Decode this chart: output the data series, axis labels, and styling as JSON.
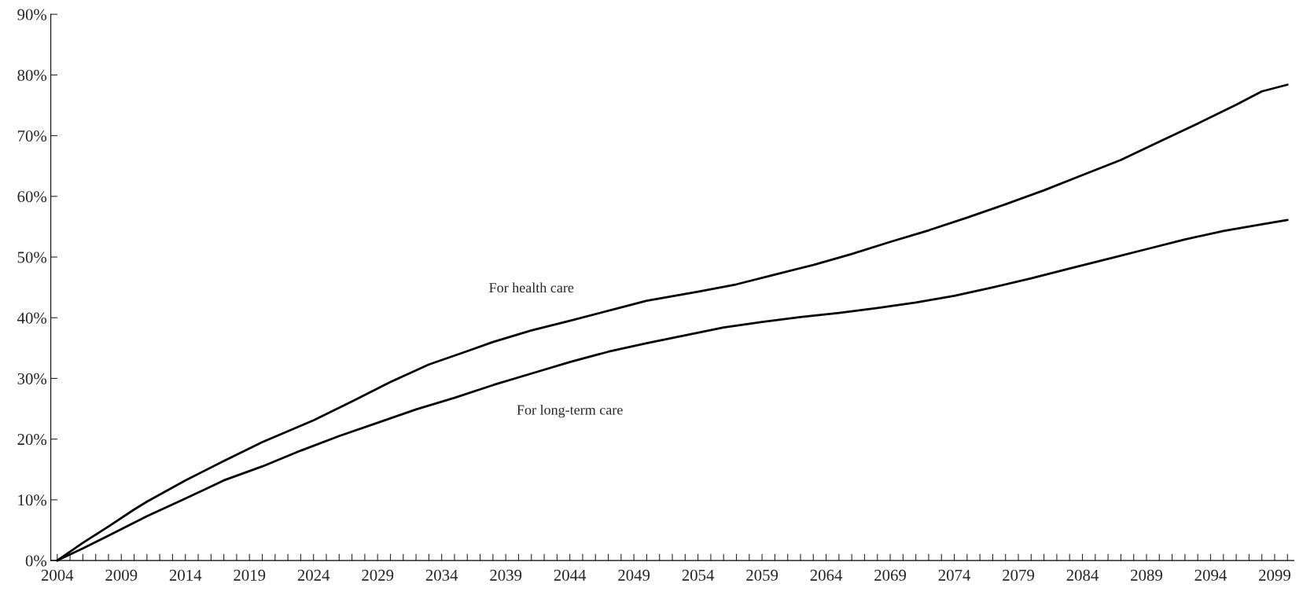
{
  "chart_data": {
    "type": "line",
    "xlim": [
      2003.5,
      2100.5
    ],
    "ylim": [
      0,
      90
    ],
    "yticks": [
      {
        "value": 0,
        "label": "0%"
      },
      {
        "value": 10,
        "label": "10%"
      },
      {
        "value": 20,
        "label": "20%"
      },
      {
        "value": 30,
        "label": "30%"
      },
      {
        "value": 40,
        "label": "40%"
      },
      {
        "value": 50,
        "label": "50%"
      },
      {
        "value": 60,
        "label": "60%"
      },
      {
        "value": 70,
        "label": "70%"
      },
      {
        "value": 80,
        "label": "80%"
      },
      {
        "value": 90,
        "label": "90%"
      }
    ],
    "xticks": [
      2004,
      2009,
      2014,
      2019,
      2024,
      2029,
      2034,
      2039,
      2044,
      2049,
      2054,
      2059,
      2064,
      2069,
      2074,
      2079,
      2084,
      2089,
      2094,
      2099,
      {
        "value": 2005,
        "label": null
      },
      {
        "value": 2006,
        "label": null
      },
      {
        "value": 2007,
        "label": null
      },
      {
        "value": 2008,
        "label": null
      },
      {
        "value": 2010,
        "label": null
      },
      {
        "value": 2011,
        "label": null
      },
      {
        "value": 2012,
        "label": null
      },
      {
        "value": 2013,
        "label": null
      },
      {
        "value": 2015,
        "label": null
      },
      {
        "value": 2016,
        "label": null
      },
      {
        "value": 2017,
        "label": null
      },
      {
        "value": 2018,
        "label": null
      },
      {
        "value": 2020,
        "label": null
      },
      {
        "value": 2021,
        "label": null
      },
      {
        "value": 2022,
        "label": null
      },
      {
        "value": 2023,
        "label": null
      },
      {
        "value": 2025,
        "label": null
      },
      {
        "value": 2026,
        "label": null
      },
      {
        "value": 2027,
        "label": null
      },
      {
        "value": 2028,
        "label": null
      },
      {
        "value": 2030,
        "label": null
      },
      {
        "value": 2031,
        "label": null
      },
      {
        "value": 2032,
        "label": null
      },
      {
        "value": 2033,
        "label": null
      },
      {
        "value": 2035,
        "label": null
      },
      {
        "value": 2036,
        "label": null
      },
      {
        "value": 2037,
        "label": null
      },
      {
        "value": 2038,
        "label": null
      },
      {
        "value": 2040,
        "label": null
      },
      {
        "value": 2041,
        "label": null
      },
      {
        "value": 2042,
        "label": null
      },
      {
        "value": 2043,
        "label": null
      },
      {
        "value": 2045,
        "label": null
      },
      {
        "value": 2046,
        "label": null
      },
      {
        "value": 2047,
        "label": null
      },
      {
        "value": 2048,
        "label": null
      },
      {
        "value": 2050,
        "label": null
      },
      {
        "value": 2051,
        "label": null
      },
      {
        "value": 2052,
        "label": null
      },
      {
        "value": 2053,
        "label": null
      },
      {
        "value": 2055,
        "label": null
      },
      {
        "value": 2056,
        "label": null
      },
      {
        "value": 2057,
        "label": null
      },
      {
        "value": 2058,
        "label": null
      },
      {
        "value": 2060,
        "label": null
      },
      {
        "value": 2061,
        "label": null
      },
      {
        "value": 2062,
        "label": null
      },
      {
        "value": 2063,
        "label": null
      },
      {
        "value": 2065,
        "label": null
      },
      {
        "value": 2066,
        "label": null
      },
      {
        "value": 2067,
        "label": null
      },
      {
        "value": 2068,
        "label": null
      },
      {
        "value": 2070,
        "label": null
      },
      {
        "value": 2071,
        "label": null
      },
      {
        "value": 2072,
        "label": null
      },
      {
        "value": 2073,
        "label": null
      },
      {
        "value": 2075,
        "label": null
      },
      {
        "value": 2076,
        "label": null
      },
      {
        "value": 2077,
        "label": null
      },
      {
        "value": 2078,
        "label": null
      },
      {
        "value": 2080,
        "label": null
      },
      {
        "value": 2081,
        "label": null
      },
      {
        "value": 2082,
        "label": null
      },
      {
        "value": 2083,
        "label": null
      },
      {
        "value": 2085,
        "label": null
      },
      {
        "value": 2086,
        "label": null
      },
      {
        "value": 2087,
        "label": null
      },
      {
        "value": 2088,
        "label": null
      },
      {
        "value": 2090,
        "label": null
      },
      {
        "value": 2091,
        "label": null
      },
      {
        "value": 2092,
        "label": null
      },
      {
        "value": 2093,
        "label": null
      },
      {
        "value": 2095,
        "label": null
      },
      {
        "value": 2096,
        "label": null
      },
      {
        "value": 2097,
        "label": null
      },
      {
        "value": 2098,
        "label": null
      },
      {
        "value": 2100,
        "label": null
      }
    ],
    "grid": false,
    "legend": false,
    "marker": "none",
    "line_style": "solid",
    "series": [
      {
        "name": "For health care",
        "color": "#000000",
        "x": [
          2004,
          2006,
          2008,
          2010,
          2011,
          2014,
          2017,
          2020,
          2024,
          2027,
          2030,
          2033,
          2036,
          2038,
          2041,
          2044,
          2048,
          2050,
          2054,
          2057,
          2060,
          2063,
          2066,
          2069,
          2072,
          2075,
          2078,
          2081,
          2084,
          2087,
          2090,
          2093,
          2096,
          2098,
          2100
        ],
        "values": [
          0,
          2.9,
          5.6,
          8.4,
          9.7,
          13.2,
          16.4,
          19.5,
          23.1,
          26.2,
          29.4,
          32.3,
          34.5,
          36.0,
          37.9,
          39.5,
          41.7,
          42.8,
          44.3,
          45.5,
          47.1,
          48.7,
          50.5,
          52.5,
          54.4,
          56.5,
          58.7,
          61.0,
          63.5,
          66.0,
          69.0,
          72.0,
          75.1,
          77.3,
          78.4
        ]
      },
      {
        "name": "For long-term care",
        "color": "#000000",
        "x": [
          2004,
          2006,
          2008,
          2011,
          2014,
          2017,
          2020,
          2023,
          2026,
          2029,
          2032,
          2035,
          2038,
          2041,
          2044,
          2047,
          2050,
          2053,
          2056,
          2059,
          2062,
          2065,
          2068,
          2071,
          2074,
          2077,
          2080,
          2083,
          2086,
          2089,
          2092,
          2095,
          2098,
          2100
        ],
        "values": [
          0,
          2.0,
          4.1,
          7.3,
          10.2,
          13.2,
          15.5,
          18.1,
          20.5,
          22.7,
          24.9,
          26.8,
          28.9,
          30.8,
          32.7,
          34.4,
          35.8,
          37.1,
          38.4,
          39.3,
          40.1,
          40.8,
          41.6,
          42.5,
          43.6,
          45.0,
          46.5,
          48.1,
          49.7,
          51.3,
          52.9,
          54.3,
          55.4,
          56.1
        ]
      }
    ]
  }
}
